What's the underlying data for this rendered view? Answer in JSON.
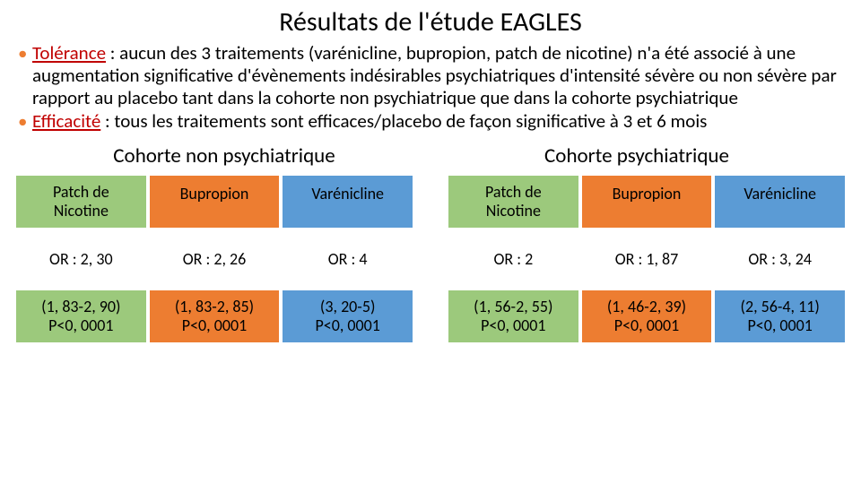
{
  "title": "Résultats de l'étude EAGLES",
  "bullets": [
    {
      "keyword": "Tolérance",
      "keyword_color": "#c00000",
      "bullet_color": "#ed7d31",
      "text": " : aucun des 3 traitements (varénicline, bupropion, patch de nicotine) n'a été associé à une augmentation significative d'évènements indésirables psychiatriques d'intensité sévère ou non sévère par rapport au placebo tant dans la cohorte non psychiatrique que dans la cohorte psychiatrique"
    },
    {
      "keyword": "Efficacité",
      "keyword_color": "#c00000",
      "bullet_color": "#ed7d31",
      "text": " : tous les traitements sont efficaces/placebo de façon significative à 3 et 6 mois"
    }
  ],
  "cohorts": [
    {
      "title": "Cohorte non psychiatrique"
    },
    {
      "title": "Cohorte psychiatrique"
    }
  ],
  "colors": {
    "green": "#9cc97c",
    "orange": "#ed7d31",
    "blue": "#5b9bd5",
    "white": "#ffffff"
  },
  "tables": [
    {
      "headers": [
        {
          "l1": "Patch de",
          "l2": "Nicotine",
          "bg": "green"
        },
        {
          "l1": "Bupropion",
          "l2": "",
          "bg": "orange"
        },
        {
          "l1": "Varénicline",
          "l2": "",
          "bg": "blue"
        }
      ],
      "or_row": [
        {
          "t": "OR : 2, 30",
          "bg": "white"
        },
        {
          "t": "OR : 2, 26",
          "bg": "white"
        },
        {
          "t": "OR : 4",
          "bg": "white"
        }
      ],
      "ci_row": [
        {
          "l1": "(1, 83-2, 90)",
          "l2": "P<0, 0001",
          "bg": "green"
        },
        {
          "l1": "(1, 83-2, 85)",
          "l2": "P<0, 0001",
          "bg": "orange"
        },
        {
          "l1": "(3, 20-5)",
          "l2": "P<0, 0001",
          "bg": "blue"
        }
      ]
    },
    {
      "headers": [
        {
          "l1": "Patch de",
          "l2": "Nicotine",
          "bg": "green"
        },
        {
          "l1": "Bupropion",
          "l2": "",
          "bg": "orange"
        },
        {
          "l1": "Varénicline",
          "l2": "",
          "bg": "blue"
        }
      ],
      "or_row": [
        {
          "t": "OR : 2",
          "bg": "white"
        },
        {
          "t": "OR : 1, 87",
          "bg": "white"
        },
        {
          "t": "OR : 3, 24",
          "bg": "white"
        }
      ],
      "ci_row": [
        {
          "l1": "(1, 56-2, 55)",
          "l2": "P<0, 0001",
          "bg": "green"
        },
        {
          "l1": "(1, 46-2, 39)",
          "l2": "P<0, 0001",
          "bg": "orange"
        },
        {
          "l1": "(2, 56-4, 11)",
          "l2": "P<0, 0001",
          "bg": "blue"
        }
      ]
    }
  ]
}
